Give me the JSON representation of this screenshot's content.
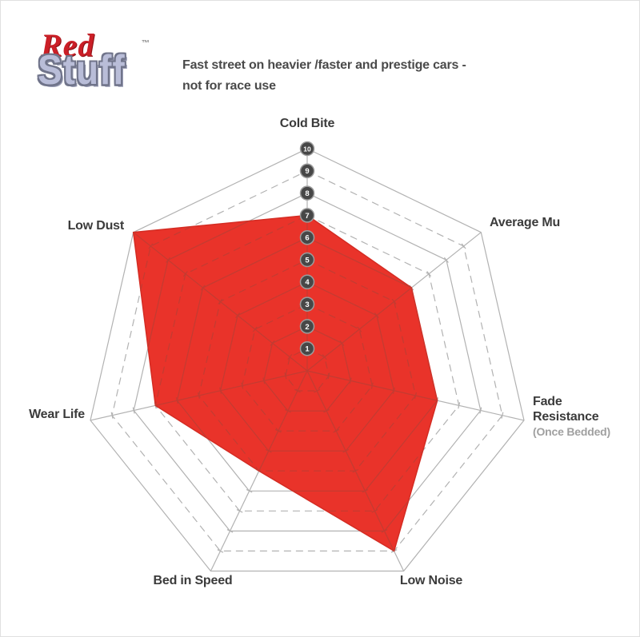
{
  "header": {
    "logo": {
      "line1": "Red",
      "line2": "Stuff",
      "trademark": "™"
    },
    "description": {
      "line1": "Fast street on heavier /faster and prestige cars -",
      "line2": "not for race use"
    }
  },
  "chart_data": {
    "type": "radar",
    "title": "RedStuff brake pad performance profile",
    "axes": [
      {
        "label": "Cold Bite"
      },
      {
        "label": "Average Mu"
      },
      {
        "label": "Fade Resistance",
        "sublabel": "(Once Bedded)"
      },
      {
        "label": "Low Noise"
      },
      {
        "label": "Bed in Speed"
      },
      {
        "label": "Wear Life"
      },
      {
        "label": "Low Dust"
      }
    ],
    "values": [
      7,
      6,
      6,
      9,
      5,
      7,
      10
    ],
    "scale": {
      "min": 1,
      "max": 10,
      "tick_labels": [
        "1",
        "2",
        "3",
        "4",
        "5",
        "6",
        "7",
        "8",
        "9",
        "10"
      ],
      "rings": 10,
      "ring_style": "even rings solid, odd rings dashed"
    },
    "layout": {
      "grid": "on",
      "legend": "none",
      "axis_order": "clockwise from top"
    },
    "colors": {
      "fill": "#e9332a",
      "fill_edge": "#d42c23",
      "grid_inside_fill": "#c23c32",
      "grid": "#b2b2b2",
      "marker_fill": "#474747",
      "marker_stroke": "#9c9c9c",
      "marker_text": "#ffffff",
      "label": "#3b3b3b",
      "sublabel": "#a0a0a0"
    }
  }
}
